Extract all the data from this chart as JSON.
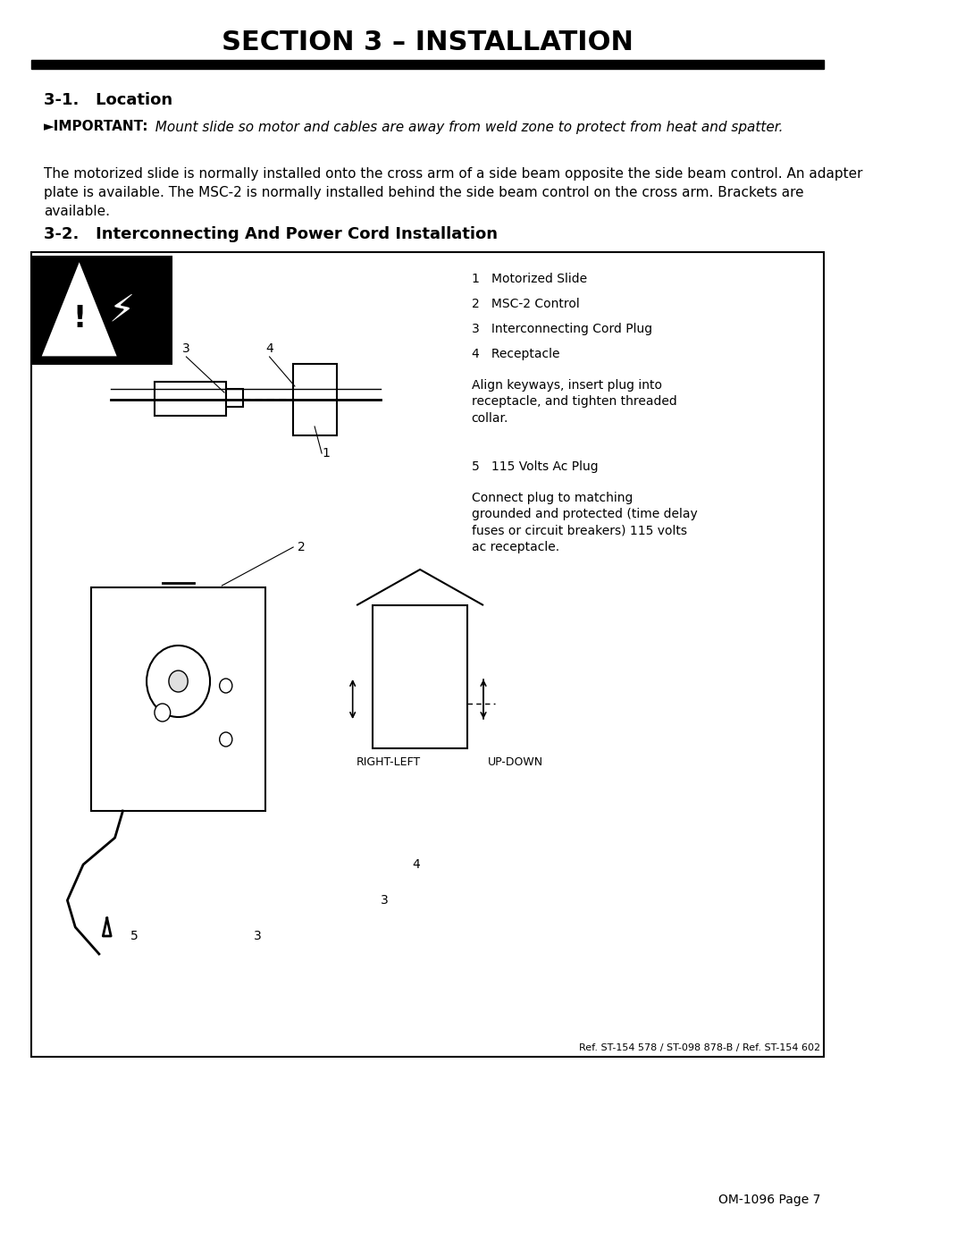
{
  "title": "SECTION 3 – INSTALLATION",
  "section1_heading": "3-1.   Location",
  "important_label": "►IMPORTANT:",
  "important_text": "  Mount slide so motor and cables are away from weld zone to protect from heat and spatter.",
  "body_text": "The motorized slide is normally installed onto the cross arm of a side beam opposite the side beam control. An adapter\nplate is available. The MSC-2 is normally installed behind the side beam control on the cross arm. Brackets are\navailable.",
  "section2_heading": "3-2.   Interconnecting And Power Cord Installation",
  "legend_items": [
    "1   Motorized Slide",
    "2   MSC-2 Control",
    "3   Interconnecting Cord Plug",
    "4   Receptacle"
  ],
  "align_text": "Align keyways, insert plug into\nreceptacle, and tighten threaded\ncollar.",
  "item5_label": "5   115 Volts Ac Plug",
  "connect_text": "Connect plug to matching\ngrounded and protected (time delay\nfuses or circuit breakers) 115 volts\nac receptacle.",
  "ref_text": "Ref. ST-154 578 / ST-098 878-B / Ref. ST-154 602",
  "page_text": "OM-1096 Page 7",
  "bg_color": "#ffffff",
  "text_color": "#000000",
  "title_bar_color": "#000000"
}
